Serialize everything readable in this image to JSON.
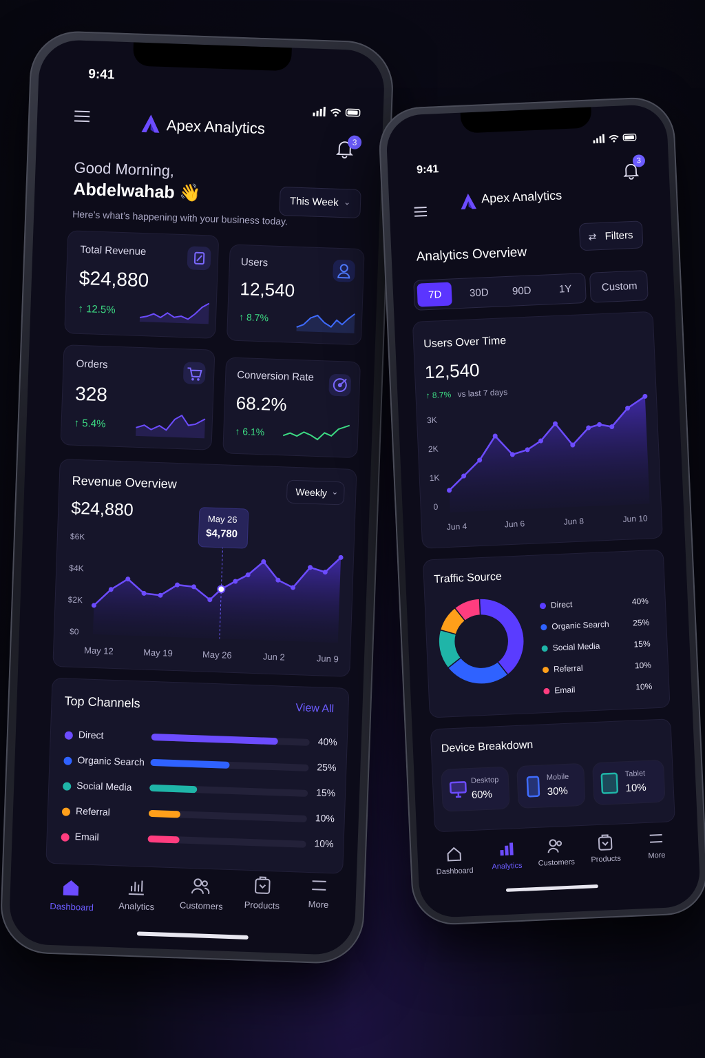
{
  "left_phone": {
    "status": {
      "time": "9:41"
    },
    "header": {
      "app_name": "Apex Analytics",
      "notification_count": "3"
    },
    "greeting": {
      "line1": "Good Morning,",
      "name": "Abdelwahab",
      "emoji": "👋",
      "subtitle": "Here’s what’s happening with your business today."
    },
    "period_select": {
      "label": "This Week"
    },
    "stats": [
      {
        "label": "Total Revenue",
        "value": "$24,880",
        "change": "12.5%"
      },
      {
        "label": "Users",
        "value": "12,540",
        "change": "8.7%"
      },
      {
        "label": "Orders",
        "value": "328",
        "change": "5.4%"
      },
      {
        "label": "Conversion Rate",
        "value": "68.2%",
        "change": "6.1%"
      }
    ],
    "revenue_overview": {
      "title": "Revenue Overview",
      "total": "$24,880",
      "select": "Weekly",
      "tooltip": {
        "date": "May 26",
        "value": "$4,780"
      },
      "y_ticks": [
        "$6K",
        "$4K",
        "$2K",
        "$0"
      ],
      "x_ticks": [
        "May 12",
        "May 19",
        "May 26",
        "Jun 2",
        "Jun 9"
      ]
    },
    "top_channels": {
      "title": "Top Channels",
      "link": "View All",
      "items": [
        {
          "name": "Direct",
          "pct": "40%",
          "value": 0.4,
          "color": "#6c4cff"
        },
        {
          "name": "Organic Search",
          "pct": "25%",
          "value": 0.25,
          "color": "#2f62ff"
        },
        {
          "name": "Social Media",
          "pct": "15%",
          "value": 0.15,
          "color": "#1fb5a8"
        },
        {
          "name": "Referral",
          "pct": "10%",
          "value": 0.1,
          "color": "#ff9f1a"
        },
        {
          "name": "Email",
          "pct": "10%",
          "value": 0.1,
          "color": "#ff3d7f"
        }
      ]
    },
    "nav": [
      "Dashboard",
      "Analytics",
      "Customers",
      "Products",
      "More"
    ]
  },
  "right_phone": {
    "status": {
      "time": "9:41"
    },
    "header": {
      "app_name": "Apex Analytics",
      "notification_count": "3"
    },
    "overview": {
      "title": "Analytics Overview",
      "filters": "Filters"
    },
    "ranges": [
      "7D",
      "30D",
      "90D",
      "1Y"
    ],
    "custom": "Custom",
    "users_over_time": {
      "title": "Users Over Time",
      "value": "12,540",
      "change": "8.7%",
      "change_note": "vs last 7 days",
      "y_ticks": [
        "3K",
        "2K",
        "1K",
        "0"
      ],
      "x_ticks": [
        "Jun 4",
        "Jun 6",
        "Jun 8",
        "Jun 10"
      ]
    },
    "traffic_source": {
      "title": "Traffic Source",
      "items": [
        {
          "name": "Direct",
          "pct": "40%",
          "value": 40,
          "color": "#5a3cff"
        },
        {
          "name": "Organic Search",
          "pct": "25%",
          "value": 25,
          "color": "#2f62ff"
        },
        {
          "name": "Social Media",
          "pct": "15%",
          "value": 15,
          "color": "#1fb5a8"
        },
        {
          "name": "Referral",
          "pct": "10%",
          "value": 10,
          "color": "#ff9f1a"
        },
        {
          "name": "Email",
          "pct": "10%",
          "value": 10,
          "color": "#ff3d7f"
        }
      ]
    },
    "device_breakdown": {
      "title": "Device Breakdown",
      "items": [
        {
          "name": "Desktop",
          "pct": "60%"
        },
        {
          "name": "Mobile",
          "pct": "30%"
        },
        {
          "name": "Tablet",
          "pct": "10%"
        }
      ]
    },
    "nav": [
      "Dashboard",
      "Analytics",
      "Customers",
      "Products",
      "More"
    ]
  },
  "colors": {
    "accent": "#6c5cff",
    "positive": "#3ddc84",
    "background": "#0d0c1a",
    "card": "#16152a"
  }
}
